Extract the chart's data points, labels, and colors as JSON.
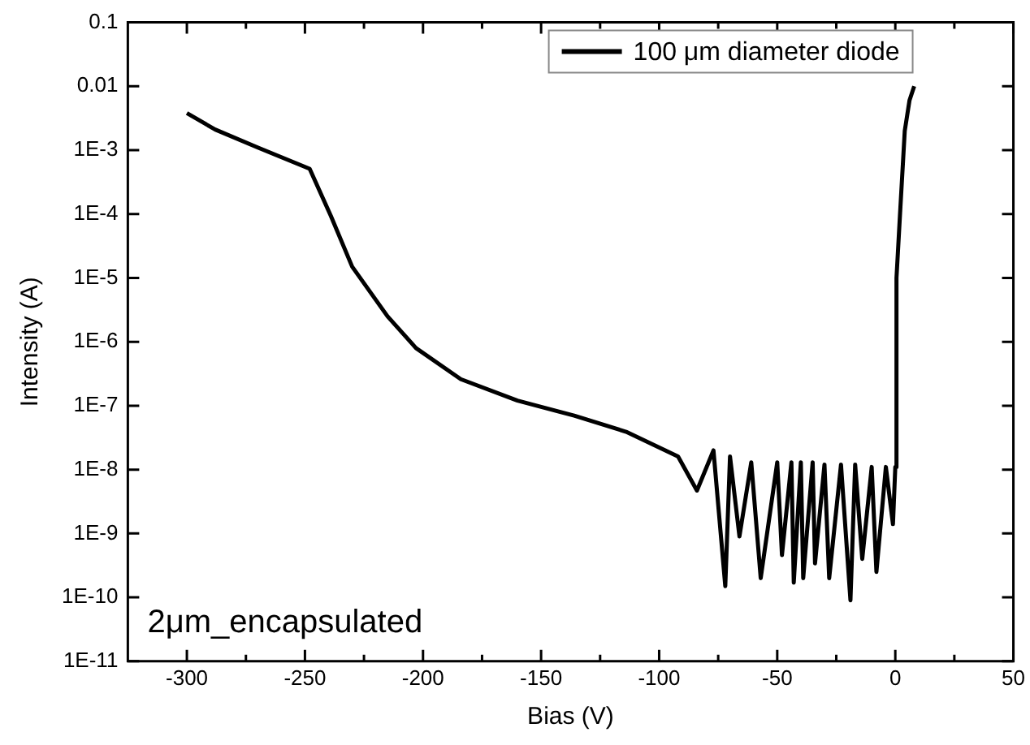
{
  "chart_data": {
    "type": "line",
    "xlabel": "Bias (V)",
    "ylabel": "Intensity (A)",
    "log": "y",
    "legend": "top right",
    "grid": false,
    "annotations": [
      "2μm_encapsulated"
    ],
    "xlim": [
      -325,
      50
    ],
    "xticks": [
      -300,
      {
        "value": -275,
        "label": null
      },
      -250,
      {
        "value": -225,
        "label": null
      },
      -200,
      {
        "value": -175,
        "label": null
      },
      -150,
      {
        "value": -125,
        "label": null
      },
      -100,
      {
        "value": -75,
        "label": null
      },
      -50,
      {
        "value": -25,
        "label": null
      },
      0,
      {
        "value": 25,
        "label": null
      },
      50
    ],
    "ylim": [
      1e-11,
      0.1
    ],
    "yticks": [
      {
        "value": 1e-11,
        "label": "1E-11"
      },
      {
        "value": 1e-10,
        "label": "1E-10"
      },
      {
        "value": 1e-09,
        "label": "1E-9"
      },
      {
        "value": 1e-08,
        "label": "1E-8"
      },
      {
        "value": 1e-07,
        "label": "1E-7"
      },
      {
        "value": 1e-06,
        "label": "1E-6"
      },
      {
        "value": 1e-05,
        "label": "1E-5"
      },
      {
        "value": 0.0001,
        "label": "1E-4"
      },
      {
        "value": 0.001,
        "label": "1E-3"
      },
      0.01,
      0.1
    ],
    "series": [
      {
        "name": "100 μm diameter diode",
        "color": "#000000",
        "x": [
          -300,
          -288,
          -270,
          -248,
          -239,
          -230,
          -215,
          -203,
          -184,
          -160,
          -136,
          -114,
          -92,
          -84,
          -77,
          -72,
          -70,
          -66,
          -61,
          -57,
          -50,
          -48,
          -44,
          -43,
          -40,
          -39,
          -35,
          -34,
          -30,
          -28,
          -23,
          -19,
          -17,
          -14,
          -10,
          -8,
          -4,
          -1,
          0,
          0.5,
          2,
          4,
          6,
          8
        ],
        "values": [
          0.0038,
          0.0021,
          0.0011,
          0.00051,
          9.3e-05,
          1.5e-05,
          2.5e-06,
          8e-07,
          2.6e-07,
          1.2e-07,
          7e-08,
          3.9e-08,
          1.6e-08,
          4.7e-09,
          2e-08,
          1.5e-10,
          1.6e-08,
          9e-10,
          1.3e-08,
          2e-10,
          1.3e-08,
          4.6e-10,
          1.3e-08,
          1.7e-10,
          1.3e-08,
          2e-10,
          1.3e-08,
          3.4e-10,
          1.2e-08,
          2e-10,
          1.2e-08,
          9e-11,
          1.2e-08,
          4e-10,
          1.1e-08,
          2.5e-10,
          1.1e-08,
          1.4e-09,
          1.1e-08,
          1e-05,
          0.0001,
          0.002,
          0.006,
          0.01
        ]
      }
    ]
  }
}
